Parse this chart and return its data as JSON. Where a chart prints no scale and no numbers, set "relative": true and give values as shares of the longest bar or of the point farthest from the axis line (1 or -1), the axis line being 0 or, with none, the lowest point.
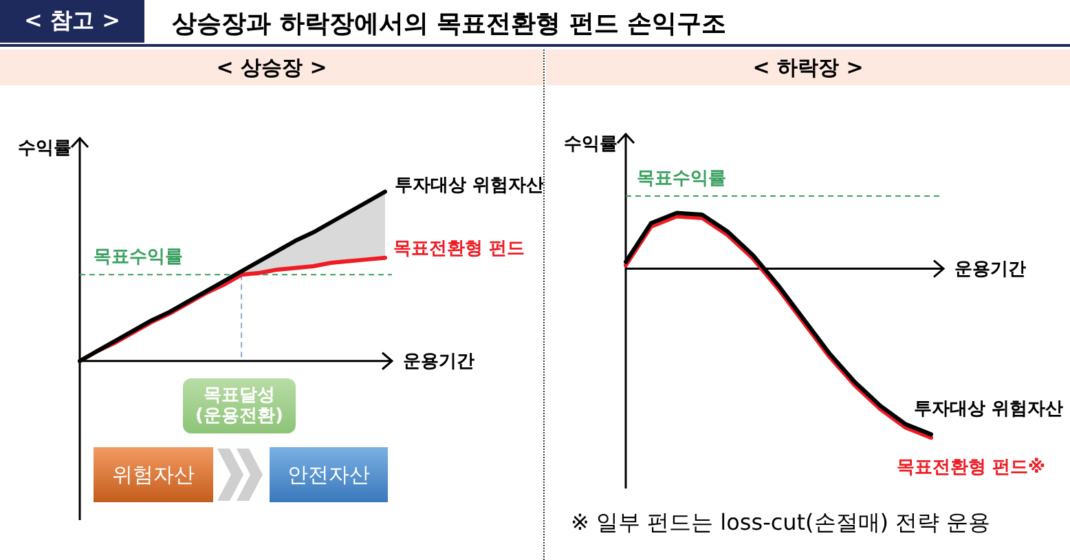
{
  "chart_data": [
    {
      "type": "line",
      "title": "< 상승장 >",
      "xlabel": "운용기간",
      "ylabel": "수익률",
      "relative": true,
      "tick_labels": false,
      "marker": "none",
      "categories": [
        null,
        null,
        null,
        null,
        null,
        null,
        null,
        null,
        null,
        null,
        null,
        null,
        null,
        null,
        null,
        null,
        null,
        null
      ],
      "annotations": [
        "< 참고 >",
        "상승장과 하락장에서의 목표전환형 펀드 손익구조",
        "목표달성\n(운용전환)",
        "위험자산",
        "안전자산"
      ],
      "ref_lines": [
        {
          "axis": "y",
          "value": 0.51,
          "label": "목표수익률",
          "color": "#3aa060",
          "line_style": "dashed"
        }
      ],
      "series": [
        {
          "name": "투자대상 위험자산",
          "color": "#000000",
          "values": [
            0,
            0.06,
            0.12,
            0.18,
            0.24,
            0.29,
            0.35,
            0.41,
            0.47,
            0.53,
            0.59,
            0.65,
            0.71,
            0.76,
            0.82,
            0.88,
            0.94,
            1
          ],
          "lower": [
            null,
            null,
            null,
            null,
            null,
            null,
            null,
            null,
            null,
            0.51,
            0.52,
            0.54,
            0.55,
            0.56,
            0.58,
            0.59,
            0.6,
            0.61
          ],
          "upper": [
            null,
            null,
            null,
            null,
            null,
            null,
            null,
            null,
            null,
            0.53,
            0.59,
            0.65,
            0.71,
            0.76,
            0.82,
            0.88,
            0.94,
            1
          ]
        },
        {
          "name": "목표전환형 펀드",
          "color": "#ee1c24",
          "values": [
            0,
            0.06,
            0.11,
            0.17,
            0.23,
            0.28,
            0.34,
            0.4,
            0.45,
            0.51,
            0.52,
            0.54,
            0.55,
            0.56,
            0.58,
            0.59,
            0.6,
            0.61
          ]
        }
      ]
    },
    {
      "type": "line",
      "title": "< 하락장 >",
      "xlabel": "운용기간",
      "ylabel": "수익률",
      "relative": true,
      "tick_labels": false,
      "marker": "none",
      "categories": [
        null,
        null,
        null,
        null,
        null,
        null,
        null,
        null,
        null,
        null,
        null,
        null,
        null
      ],
      "annotations": [
        "※ 일부 펀드는 loss-cut(손절매) 전략 운용"
      ],
      "ref_lines": [
        {
          "axis": "y",
          "value": 0.43,
          "label": "목표수익률",
          "color": "#3aa060",
          "line_style": "dashed"
        }
      ],
      "series": [
        {
          "name": "투자대상 위험자산",
          "color": "#000000",
          "values": [
            0.04,
            0.27,
            0.33,
            0.32,
            0.22,
            0.08,
            -0.1,
            -0.3,
            -0.5,
            -0.67,
            -0.81,
            -0.92,
            -0.98
          ]
        },
        {
          "name": "목표전환형 펀드※",
          "color": "#ee1c24",
          "values": [
            0.02,
            0.25,
            0.31,
            0.3,
            0.2,
            0.06,
            -0.12,
            -0.32,
            -0.52,
            -0.69,
            -0.83,
            -0.94,
            -1
          ]
        }
      ]
    }
  ]
}
